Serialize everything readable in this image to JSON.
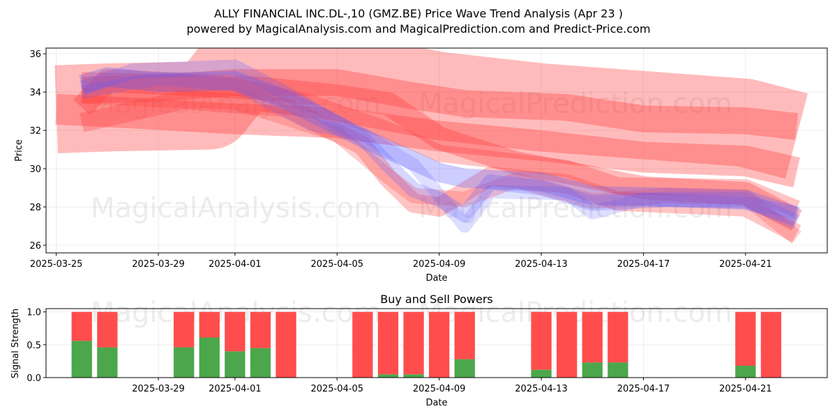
{
  "chart_title": "ALLY FINANCIAL INC.DL-,10 (GMZ.BE) Price Wave Trend Analysis (Apr 23 )",
  "chart_subtitle": "powered by MagicalAnalysis.com and MagicalPrediction.com and Predict-Price.com",
  "watermarks": [
    "MagicalAnalysis.com",
    "MagicalPrediction.com"
  ],
  "chart_data": [
    {
      "type": "area",
      "title": "",
      "xlabel": "Date",
      "ylabel": "Price",
      "x_start": "2025-03-25",
      "x_range_days": [
        -0.4,
        30.2
      ],
      "ylim": [
        25.6,
        36.3
      ],
      "y_ticks": [
        26,
        28,
        30,
        32,
        34,
        36
      ],
      "x_ticks": [
        "2025-03-25",
        "2025-03-29",
        "2025-04-01",
        "2025-04-05",
        "2025-04-09",
        "2025-04-13",
        "2025-04-17",
        "2025-04-21"
      ],
      "grid": true,
      "colors": {
        "red": "#ff3b3b",
        "blue": "#5b5bff"
      },
      "series": [
        {
          "color": "red",
          "opacity": 0.35,
          "width": 4.6,
          "points": [
            [
              "2025-03-25",
              33.1
            ],
            [
              "2025-03-27",
              33.2
            ],
            [
              "2025-03-31",
              33.3
            ],
            [
              "2025-04-01",
              35.0
            ],
            [
              "2025-04-02",
              35.3
            ],
            [
              "2025-04-05",
              34.8
            ],
            [
              "2025-04-09",
              33.8
            ],
            [
              "2025-04-13",
              33.2
            ],
            [
              "2025-04-17",
              32.8
            ],
            [
              "2025-04-21",
              32.4
            ],
            [
              "2025-04-23",
              31.7
            ]
          ]
        },
        {
          "color": "red",
          "opacity": 0.35,
          "width": 1.6,
          "points": [
            [
              "2025-03-25",
              33.1
            ],
            [
              "2025-03-28",
              32.9
            ],
            [
              "2025-04-01",
              32.6
            ],
            [
              "2025-04-05",
              32.4
            ],
            [
              "2025-04-09",
              31.7
            ],
            [
              "2025-04-13",
              31.2
            ],
            [
              "2025-04-17",
              30.6
            ],
            [
              "2025-04-21",
              30.4
            ],
            [
              "2025-04-23",
              29.8
            ]
          ]
        },
        {
          "color": "red",
          "opacity": 0.35,
          "width": 1.4,
          "points": [
            [
              "2025-03-26",
              34.1
            ],
            [
              "2025-03-29",
              34.2
            ],
            [
              "2025-04-01",
              34.5
            ],
            [
              "2025-04-05",
              34.5
            ],
            [
              "2025-04-08",
              33.8
            ],
            [
              "2025-04-10",
              33.4
            ],
            [
              "2025-04-14",
              33.2
            ],
            [
              "2025-04-17",
              32.6
            ],
            [
              "2025-04-21",
              32.5
            ],
            [
              "2025-04-23",
              32.2
            ]
          ]
        },
        {
          "color": "red",
          "opacity": 0.35,
          "width": 1.2,
          "points": [
            [
              "2025-03-26",
              33.2
            ],
            [
              "2025-03-27",
              34.6
            ],
            [
              "2025-03-30",
              34.4
            ],
            [
              "2025-04-02",
              34.2
            ],
            [
              "2025-04-05",
              33.8
            ],
            [
              "2025-04-07",
              33.4
            ],
            [
              "2025-04-09",
              31.6
            ],
            [
              "2025-04-12",
              30.3
            ],
            [
              "2025-04-14",
              29.8
            ],
            [
              "2025-04-17",
              29.0
            ],
            [
              "2025-04-21",
              28.7
            ],
            [
              "2025-04-23",
              27.3
            ]
          ]
        },
        {
          "color": "red",
          "opacity": 0.3,
          "width": 1.0,
          "points": [
            [
              "2025-03-26",
              32.4
            ],
            [
              "2025-03-30",
              33.6
            ],
            [
              "2025-04-03",
              33.2
            ],
            [
              "2025-04-06",
              31.2
            ],
            [
              "2025-04-07",
              29.5
            ],
            [
              "2025-04-08",
              28.2
            ],
            [
              "2025-04-09",
              28.0
            ],
            [
              "2025-04-10",
              28.8
            ],
            [
              "2025-04-11",
              29.6
            ],
            [
              "2025-04-14",
              29.2
            ],
            [
              "2025-04-16",
              28.3
            ],
            [
              "2025-04-21",
              28.0
            ],
            [
              "2025-04-23",
              26.6
            ]
          ]
        },
        {
          "color": "red",
          "opacity": 0.3,
          "width": 0.9,
          "points": [
            [
              "2025-03-26",
              34.6
            ],
            [
              "2025-03-29",
              34.5
            ],
            [
              "2025-04-01",
              34.3
            ],
            [
              "2025-04-04",
              33.4
            ],
            [
              "2025-04-07",
              32.0
            ],
            [
              "2025-04-09",
              30.8
            ],
            [
              "2025-04-11",
              30.5
            ],
            [
              "2025-04-14",
              30.0
            ],
            [
              "2025-04-16",
              29.1
            ],
            [
              "2025-04-21",
              29.0
            ],
            [
              "2025-04-23",
              27.9
            ]
          ]
        },
        {
          "color": "red",
          "opacity": 0.25,
          "width": 0.8,
          "points": [
            [
              "2025-03-26",
              33.8
            ],
            [
              "2025-03-29",
              33.6
            ],
            [
              "2025-04-01",
              33.5
            ],
            [
              "2025-04-05",
              31.8
            ],
            [
              "2025-04-07",
              29.6
            ],
            [
              "2025-04-08",
              28.6
            ],
            [
              "2025-04-10",
              28.4
            ],
            [
              "2025-04-12",
              29.4
            ],
            [
              "2025-04-15",
              28.3
            ],
            [
              "2025-04-18",
              28.6
            ],
            [
              "2025-04-21",
              28.5
            ],
            [
              "2025-04-23",
              26.4
            ]
          ]
        },
        {
          "color": "blue",
          "opacity": 0.3,
          "width": 1.0,
          "points": [
            [
              "2025-03-26",
              34.4
            ],
            [
              "2025-03-27",
              34.8
            ],
            [
              "2025-03-29",
              34.5
            ],
            [
              "2025-04-01",
              34.6
            ],
            [
              "2025-04-03",
              33.6
            ],
            [
              "2025-04-06",
              31.6
            ],
            [
              "2025-04-08",
              30.4
            ],
            [
              "2025-04-09",
              29.8
            ],
            [
              "2025-04-10",
              29.5
            ],
            [
              "2025-04-13",
              29.3
            ],
            [
              "2025-04-15",
              28.6
            ],
            [
              "2025-04-18",
              28.5
            ],
            [
              "2025-04-21",
              28.4
            ],
            [
              "2025-04-23",
              27.5
            ]
          ]
        },
        {
          "color": "blue",
          "opacity": 0.25,
          "width": 0.8,
          "points": [
            [
              "2025-03-26",
              34.2
            ],
            [
              "2025-03-28",
              35.1
            ],
            [
              "2025-04-01",
              35.3
            ],
            [
              "2025-04-03",
              33.9
            ],
            [
              "2025-04-06",
              31.6
            ],
            [
              "2025-04-07",
              30.2
            ],
            [
              "2025-04-08",
              28.9
            ],
            [
              "2025-04-09",
              28.4
            ],
            [
              "2025-04-10",
              27.6
            ],
            [
              "2025-04-11",
              29.3
            ],
            [
              "2025-04-13",
              29.0
            ],
            [
              "2025-04-15",
              28.2
            ],
            [
              "2025-04-18",
              28.4
            ],
            [
              "2025-04-21",
              28.4
            ],
            [
              "2025-04-23",
              27.2
            ]
          ]
        },
        {
          "color": "blue",
          "opacity": 0.2,
          "width": 0.7,
          "points": [
            [
              "2025-03-26",
              34.0
            ],
            [
              "2025-03-29",
              34.7
            ],
            [
              "2025-04-01",
              34.4
            ],
            [
              "2025-04-04",
              32.3
            ],
            [
              "2025-04-06",
              31.8
            ],
            [
              "2025-04-08",
              30.2
            ],
            [
              "2025-04-10",
              27.0
            ],
            [
              "2025-04-11",
              28.8
            ],
            [
              "2025-04-14",
              28.7
            ],
            [
              "2025-04-15",
              27.7
            ],
            [
              "2025-04-17",
              28.4
            ],
            [
              "2025-04-21",
              28.2
            ],
            [
              "2025-04-23",
              27.7
            ]
          ]
        }
      ]
    },
    {
      "type": "bar",
      "title": "Buy and Sell Powers",
      "xlabel": "Date",
      "ylabel": "Signal Strength",
      "x_start": "2025-03-25",
      "ylim": [
        0,
        1.05
      ],
      "y_ticks": [
        "0.0",
        "0.5",
        "1.0"
      ],
      "x_ticks": [
        "2025-03-29",
        "2025-04-01",
        "2025-04-05",
        "2025-04-09",
        "2025-04-13",
        "2025-04-17",
        "2025-04-21"
      ],
      "grid": true,
      "colors": {
        "buy": "#4ca64c",
        "sell": "#ff4d4d"
      },
      "categories": [
        "2025-03-26",
        "2025-03-27",
        "2025-03-30",
        "2025-03-31",
        "2025-04-01",
        "2025-04-02",
        "2025-04-03",
        "2025-04-06",
        "2025-04-07",
        "2025-04-08",
        "2025-04-09",
        "2025-04-10",
        "2025-04-13",
        "2025-04-14",
        "2025-04-15",
        "2025-04-16",
        "2025-04-21",
        "2025-04-22"
      ],
      "series": [
        {
          "values": [
            0.56,
            0.46,
            0.46,
            0.61,
            0.4,
            0.45,
            0.0,
            0.0,
            0.05,
            0.05,
            0.0,
            0.28,
            0.12,
            0.0,
            0.23,
            0.23,
            0.18,
            0.0
          ]
        },
        {
          "values": [
            0.44,
            0.54,
            0.54,
            0.39,
            0.6,
            0.55,
            1.0,
            1.0,
            0.95,
            0.95,
            1.0,
            0.72,
            0.88,
            1.0,
            0.77,
            0.77,
            0.82,
            1.0
          ]
        }
      ]
    }
  ]
}
